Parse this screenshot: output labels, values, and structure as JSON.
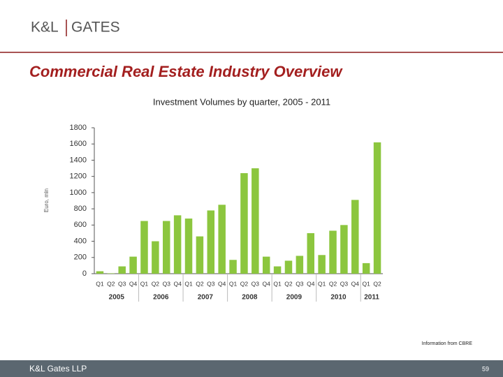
{
  "header": {
    "logo": "K&L",
    "logo_right": "GATES",
    "title": "Commercial Real Estate Industry Overview"
  },
  "chart_data": {
    "type": "bar",
    "title": "Investment Volumes by quarter, 2005 - 2011",
    "ylabel": "Euro, mln",
    "categories": [
      "Q1",
      "Q2",
      "Q3",
      "Q4",
      "Q1",
      "Q2",
      "Q3",
      "Q4",
      "Q1",
      "Q2",
      "Q3",
      "Q4",
      "Q1",
      "Q2",
      "Q3",
      "Q4",
      "Q1",
      "Q2",
      "Q3",
      "Q4",
      "Q1",
      "Q2",
      "Q3",
      "Q4",
      "Q1",
      "Q2"
    ],
    "groups": [
      "2005",
      "2006",
      "2007",
      "2008",
      "2009",
      "2010",
      "2011"
    ],
    "values": [
      30,
      5,
      90,
      210,
      650,
      400,
      650,
      720,
      680,
      460,
      780,
      850,
      170,
      1240,
      1300,
      210,
      90,
      160,
      220,
      500,
      230,
      530,
      600,
      910,
      130,
      1620
    ],
    "color": "#8cc63e",
    "ylim": [
      0,
      1800
    ],
    "yticks": [
      0,
      200,
      400,
      600,
      800,
      1000,
      1200,
      1400,
      1600,
      1800
    ],
    "grid": false
  },
  "source": "Information from CBRE",
  "footer": {
    "brand": "K&L Gates LLP",
    "page": "59"
  }
}
